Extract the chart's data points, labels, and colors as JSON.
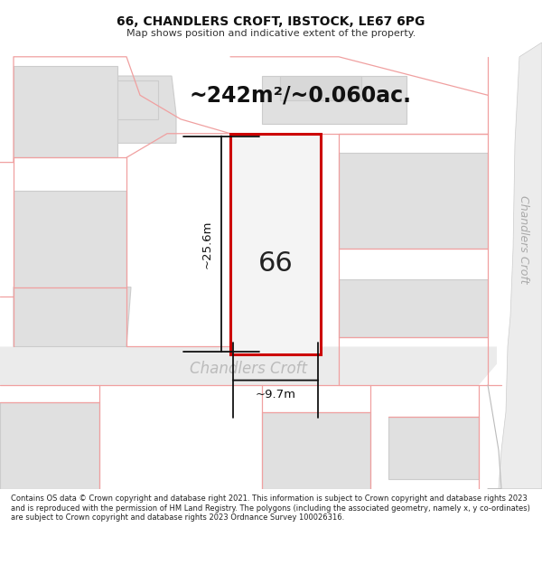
{
  "title_line1": "66, CHANDLERS CROFT, IBSTOCK, LE67 6PG",
  "title_line2": "Map shows position and indicative extent of the property.",
  "area_text": "~242m²/~0.060ac.",
  "plot_number": "66",
  "dim_vertical": "~25.6m",
  "dim_horizontal": "~9.7m",
  "road_label": "Chandlers Croft",
  "road_label_right": "Chandlers Croft",
  "footer_text": "Contains OS data © Crown copyright and database right 2021. This information is subject to Crown copyright and database rights 2023 and is reproduced with the permission of HM Land Registry. The polygons (including the associated geometry, namely x, y co-ordinates) are subject to Crown copyright and database rights 2023 Ordnance Survey 100026316.",
  "bg_color": "#ffffff",
  "map_bg": "#f8f8f8",
  "building_fill": "#e0e0e0",
  "building_edge": "#cccccc",
  "plot_fill": "#f4f4f4",
  "plot_border": "#cc0000",
  "boundary_color": "#f0a0a0",
  "road_bg": "#eeeeee",
  "dim_color": "#111111",
  "right_road_color": "#bbbbbb"
}
